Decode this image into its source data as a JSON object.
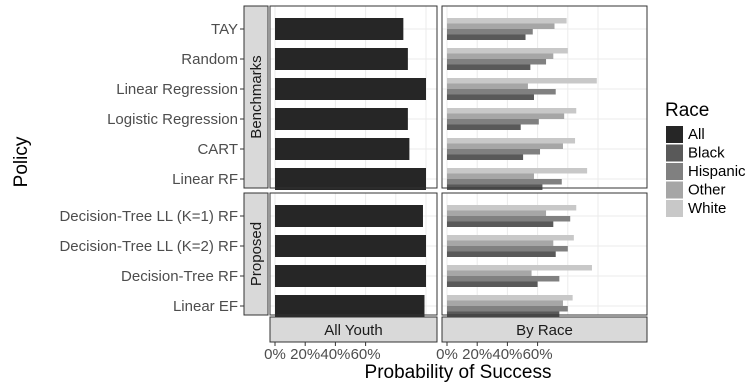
{
  "chart_data": {
    "type": "bar",
    "orientation": "horizontal",
    "xlabel": "Probability of Success",
    "ylabel": "Policy",
    "x_ticks": [
      "0%",
      "20%",
      "40%",
      "60%"
    ],
    "xlim": [
      0,
      1
    ],
    "grid": true,
    "legend_position": "right",
    "legend": {
      "title": "Race",
      "entries": [
        {
          "name": "All",
          "color": "#262626"
        },
        {
          "name": "Black",
          "color": "#595959"
        },
        {
          "name": "Hispanic",
          "color": "#808080"
        },
        {
          "name": "Other",
          "color": "#a6a6a6"
        },
        {
          "name": "White",
          "color": "#c8c8c8"
        }
      ]
    },
    "panel_columns": [
      "All Youth",
      "By Race"
    ],
    "groups": [
      {
        "name": "Benchmarks",
        "policies": [
          "TAY",
          "Random",
          "Linear Regression",
          "Logistic Regression",
          "CART",
          "Linear RF"
        ]
      },
      {
        "name": "Proposed",
        "policies": [
          "Decision-Tree LL (K=1) RF",
          "Decision-Tree LL (K=2) RF",
          "Decision-Tree RF",
          "Linear EF"
        ]
      }
    ],
    "all_youth": {
      "TAY": 0.85,
      "Random": 0.88,
      "Linear Regression": 1.0,
      "Logistic Regression": 0.88,
      "CART": 0.89,
      "Linear RF": 1.0,
      "Decision-Tree LL (K=1) RF": 0.98,
      "Decision-Tree LL (K=2) RF": 1.0,
      "Decision-Tree RF": 1.0,
      "Linear EF": 0.99
    },
    "by_race": {
      "TAY": {
        "All": 0,
        "Black": 0.65,
        "Hispanic": 0.71,
        "Other": 0.89,
        "White": 0.99
      },
      "Random": {
        "All": 0,
        "Black": 0.69,
        "Hispanic": 0.82,
        "Other": 0.88,
        "White": 1.0
      },
      "Linear Regression": {
        "All": 0,
        "Black": 0.72,
        "Hispanic": 0.9,
        "Other": 0.67,
        "White": 1.24
      },
      "Logistic Regression": {
        "All": 0,
        "Black": 0.61,
        "Hispanic": 0.76,
        "Other": 0.97,
        "White": 1.07
      },
      "CART": {
        "All": 0,
        "Black": 0.63,
        "Hispanic": 0.77,
        "Other": 0.96,
        "White": 1.06
      },
      "Linear RF": {
        "All": 0,
        "Black": 0.79,
        "Hispanic": 0.95,
        "Other": 0.72,
        "White": 1.16
      },
      "Decision-Tree LL (K=1) RF": {
        "All": 0,
        "Black": 0.88,
        "Hispanic": 1.02,
        "Other": 0.82,
        "White": 1.07
      },
      "Decision-Tree LL (K=2) RF": {
        "All": 0,
        "Black": 0.9,
        "Hispanic": 1.0,
        "Other": 0.88,
        "White": 1.05
      },
      "Decision-Tree RF": {
        "All": 0,
        "Black": 0.75,
        "Hispanic": 0.93,
        "Other": 0.7,
        "White": 1.2
      },
      "Linear EF": {
        "All": 0,
        "Black": 0.93,
        "Hispanic": 1.0,
        "Other": 0.96,
        "White": 1.04
      }
    }
  }
}
